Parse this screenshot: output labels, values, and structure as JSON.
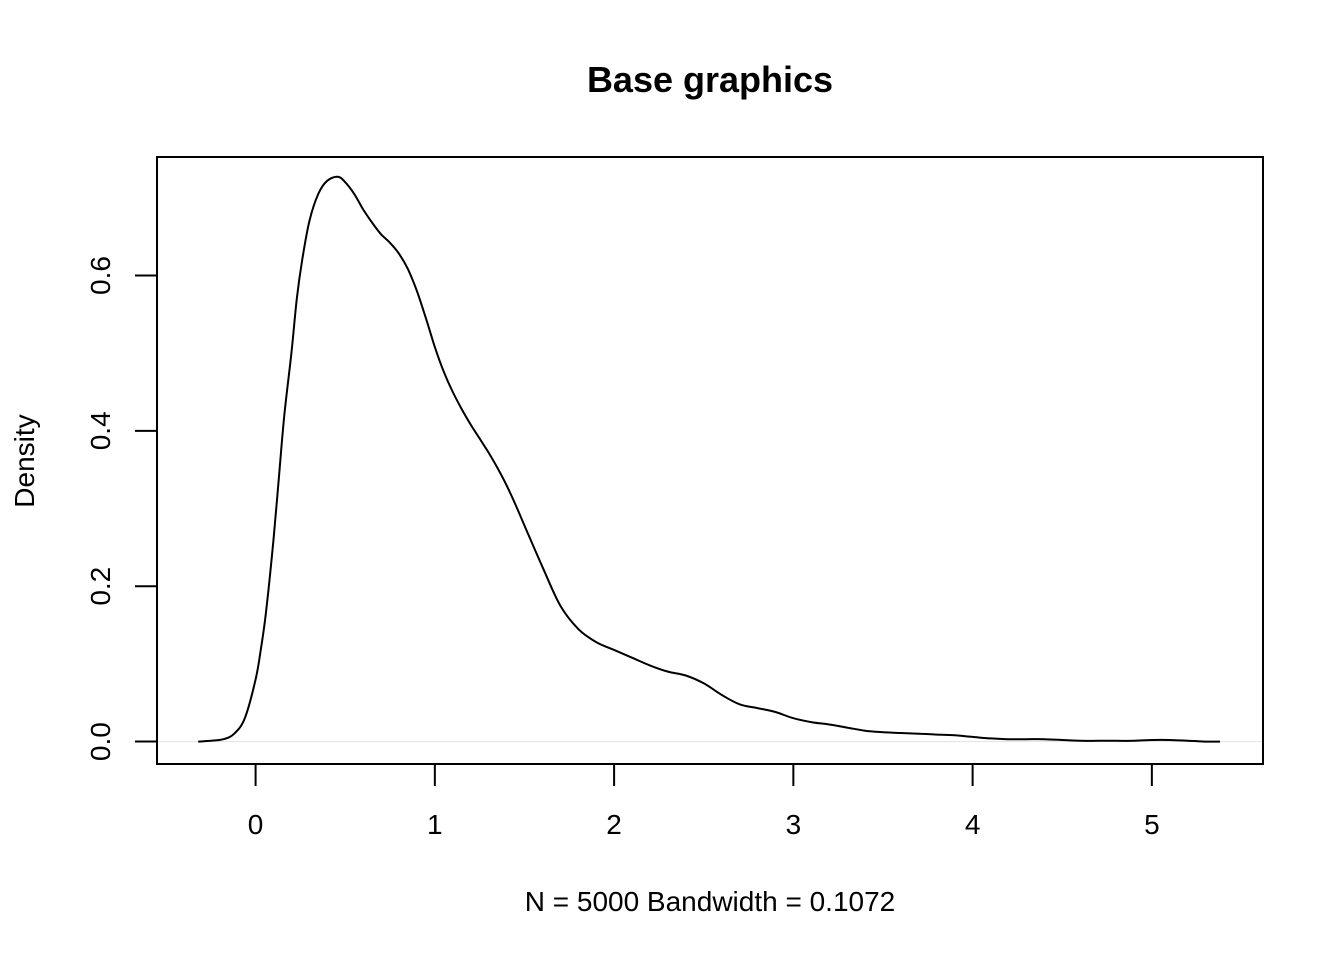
{
  "chart_data": {
    "type": "line",
    "title": "Base graphics",
    "xlabel": "N = 5000   Bandwidth = 0.1072",
    "ylabel": "Density",
    "xlim": [
      -0.55,
      5.62
    ],
    "ylim": [
      -0.0289,
      0.7525
    ],
    "x_ticks": [
      0,
      1,
      2,
      3,
      4,
      5
    ],
    "x_tick_labels": [
      "0",
      "1",
      "2",
      "3",
      "4",
      "5"
    ],
    "y_ticks": [
      0.0,
      0.2,
      0.4,
      0.6
    ],
    "y_tick_labels": [
      "0.0",
      "0.2",
      "0.4",
      "0.6"
    ],
    "grid": false,
    "baseline": 0,
    "series": [
      {
        "x": [
          -0.32,
          -0.25,
          -0.18,
          -0.12,
          -0.06,
          0.0,
          0.03,
          0.06,
          0.1,
          0.13,
          0.16,
          0.2,
          0.23,
          0.26,
          0.3,
          0.35,
          0.4,
          0.46,
          0.5,
          0.55,
          0.6,
          0.65,
          0.7,
          0.75,
          0.8,
          0.85,
          0.9,
          0.95,
          1.0,
          1.05,
          1.1,
          1.15,
          1.2,
          1.25,
          1.3,
          1.35,
          1.4,
          1.45,
          1.5,
          1.6,
          1.7,
          1.8,
          1.9,
          2.0,
          2.1,
          2.2,
          2.3,
          2.4,
          2.5,
          2.6,
          2.7,
          2.8,
          2.9,
          3.0,
          3.1,
          3.2,
          3.3,
          3.4,
          3.5,
          3.6,
          3.7,
          3.8,
          3.9,
          4.0,
          4.1,
          4.2,
          4.3,
          4.4,
          4.5,
          4.6,
          4.7,
          4.8,
          4.9,
          5.0,
          5.1,
          5.2,
          5.3,
          5.38
        ],
        "y": [
          0.0,
          0.001,
          0.003,
          0.01,
          0.03,
          0.08,
          0.12,
          0.17,
          0.26,
          0.34,
          0.42,
          0.5,
          0.57,
          0.62,
          0.67,
          0.705,
          0.722,
          0.727,
          0.72,
          0.705,
          0.685,
          0.668,
          0.653,
          0.642,
          0.628,
          0.608,
          0.58,
          0.545,
          0.508,
          0.476,
          0.45,
          0.428,
          0.408,
          0.39,
          0.372,
          0.352,
          0.33,
          0.305,
          0.278,
          0.225,
          0.175,
          0.145,
          0.128,
          0.118,
          0.108,
          0.098,
          0.09,
          0.085,
          0.075,
          0.06,
          0.048,
          0.043,
          0.038,
          0.03,
          0.025,
          0.022,
          0.018,
          0.014,
          0.012,
          0.011,
          0.01,
          0.009,
          0.008,
          0.006,
          0.004,
          0.003,
          0.003,
          0.003,
          0.002,
          0.001,
          0.001,
          0.001,
          0.001,
          0.002,
          0.002,
          0.001,
          0.0,
          0.0
        ]
      }
    ],
    "colors": {
      "line": "#000000",
      "baseline": "#e0e0e0",
      "frame": "#000000"
    }
  }
}
